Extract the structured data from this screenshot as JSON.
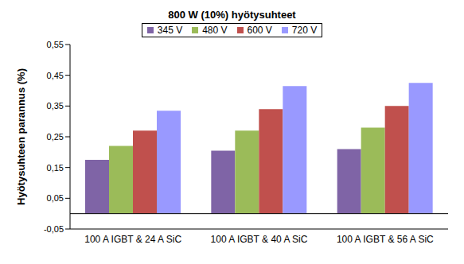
{
  "chart_data": {
    "type": "bar",
    "title": "800 W (10%) hyötysuhteet",
    "y_label": "Hyötysuhteen parannus (%)",
    "categories": [
      "100 A IGBT & 24 A SiC",
      "100 A IGBT & 40 A SiC",
      "100 A IGBT & 56 A SiC"
    ],
    "series": [
      {
        "name": "345 V",
        "color": "#7f64a6",
        "values": [
          0.175,
          0.205,
          0.21
        ]
      },
      {
        "name": "480 V",
        "color": "#9bbb59",
        "values": [
          0.22,
          0.27,
          0.28
        ]
      },
      {
        "name": "600 V",
        "color": "#c0504d",
        "values": [
          0.27,
          0.34,
          0.35
        ]
      },
      {
        "name": "720 V",
        "color": "#9999ff",
        "values": [
          0.335,
          0.415,
          0.425
        ]
      }
    ],
    "ylim": [
      -0.05,
      0.55
    ],
    "yticks": [
      {
        "value": -0.05,
        "label": "-0,05"
      },
      {
        "value": 0.05,
        "label": "0,05"
      },
      {
        "value": 0.15,
        "label": "0,15"
      },
      {
        "value": 0.25,
        "label": "0,25"
      },
      {
        "value": 0.35,
        "label": "0,35"
      },
      {
        "value": 0.45,
        "label": "0,45"
      },
      {
        "value": 0.55,
        "label": "0,55"
      }
    ],
    "grid": false,
    "legend": "top"
  }
}
